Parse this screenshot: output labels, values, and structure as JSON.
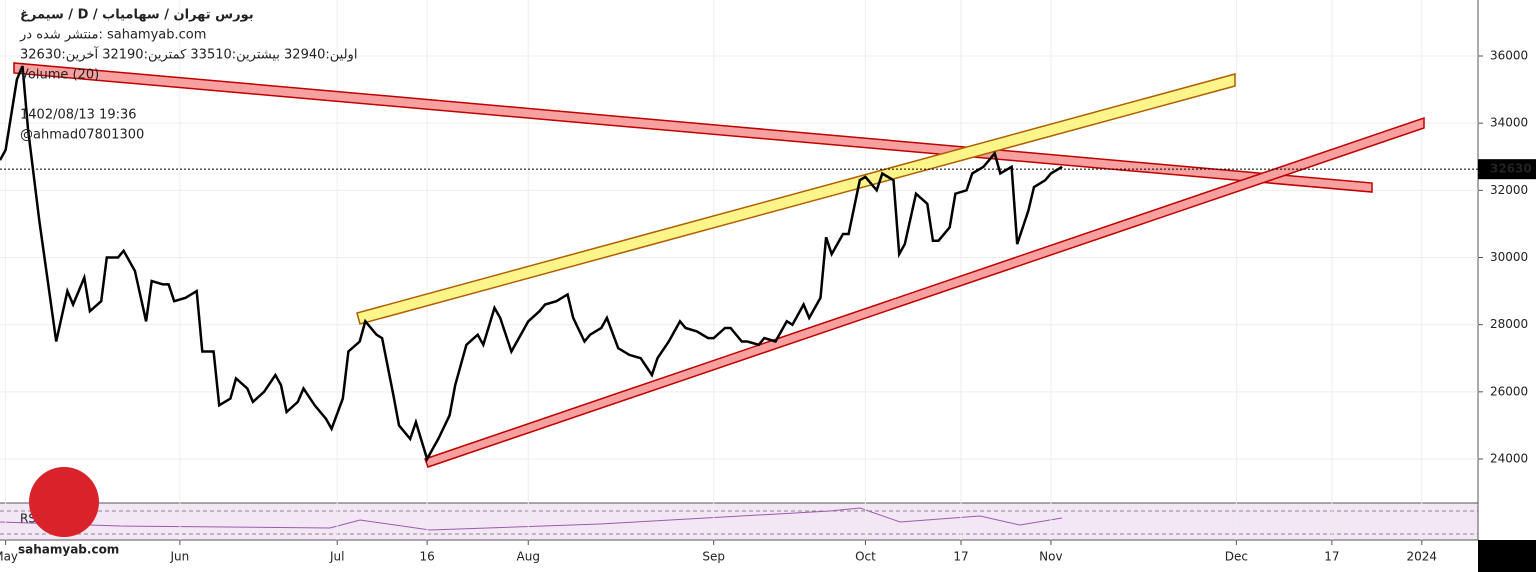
{
  "header": {
    "title": "سیمرغ / D / بورس تهران / سهامیاب",
    "published": "منتشر شده در: sahamyab.com",
    "ohlc": "اولین:32940  بیشترین:33510  کمترین:32190  آخرین:32630",
    "volume_label": "Volume (20)",
    "date": "1402/08/13 19:36",
    "author": "@ahmad07801300",
    "rsi_label": "RSI",
    "watermark": "sahamyab.com"
  },
  "chart_data": {
    "type": "line",
    "color": "#000000",
    "x": [
      -1,
      0,
      2,
      3,
      4,
      6,
      8,
      9,
      11,
      12,
      14,
      15,
      17,
      18,
      20,
      21,
      23,
      25,
      26,
      28,
      29,
      30,
      32,
      34,
      35,
      37,
      38,
      40,
      41,
      43,
      44,
      46,
      48,
      49,
      50,
      52,
      53,
      55,
      57,
      58,
      60,
      61,
      63,
      64,
      66,
      67,
      69,
      70,
      72,
      73,
      75,
      76,
      77,
      79,
      80,
      82,
      84,
      85,
      87,
      88,
      90,
      91,
      93,
      95,
      96,
      98,
      100,
      101,
      103,
      104,
      106,
      107,
      109,
      111,
      113,
      115,
      116,
      118,
      120,
      121,
      123,
      125,
      126,
      128,
      129,
      131,
      132,
      134,
      135,
      137,
      139,
      140,
      142,
      143,
      145,
      146,
      147,
      149,
      150,
      152,
      153,
      155,
      156,
      158,
      159,
      160,
      162,
      164,
      165,
      166,
      168,
      169,
      171,
      172,
      174,
      176,
      177,
      179,
      180,
      182,
      183,
      185,
      186,
      188
    ],
    "values": [
      32900,
      33200,
      35300,
      35700,
      33800,
      31100,
      28700,
      27500,
      29000,
      28600,
      29400,
      28400,
      28700,
      30000,
      30000,
      30200,
      29600,
      28100,
      29300,
      29200,
      29200,
      28700,
      28800,
      29000,
      27200,
      27200,
      25600,
      25800,
      26400,
      26100,
      25700,
      26000,
      26500,
      26200,
      25400,
      25700,
      26100,
      25600,
      25200,
      24900,
      25800,
      27200,
      27500,
      28100,
      27700,
      27600,
      25900,
      25000,
      24600,
      25100,
      24000,
      24300,
      24600,
      25300,
      26200,
      27400,
      27700,
      27400,
      28500,
      28200,
      27200,
      27500,
      28100,
      28400,
      28600,
      28700,
      28900,
      28200,
      27500,
      27700,
      27900,
      28200,
      27300,
      27100,
      27000,
      26500,
      27000,
      27500,
      28100,
      27900,
      27800,
      27600,
      27600,
      27900,
      27900,
      27500,
      27500,
      27400,
      27600,
      27500,
      28100,
      28000,
      28600,
      28200,
      28800,
      30600,
      30100,
      30700,
      30700,
      32300,
      32400,
      32000,
      32500,
      32300,
      30100,
      30400,
      31900,
      31600,
      30500,
      30500,
      30900,
      31900,
      32000,
      32500,
      32700,
      33100,
      32500,
      32700,
      30400,
      31400,
      32100,
      32300,
      32500,
      32700
    ],
    "last": 32630,
    "xlim": [
      -1,
      262
    ],
    "ylim": [
      22690,
      37667
    ],
    "yticks": [
      24000,
      26000,
      28000,
      30000,
      32000,
      34000,
      36000
    ],
    "xticks": [
      {
        "value": 0,
        "label": "May"
      },
      {
        "value": 31,
        "label": "Jun"
      },
      {
        "value": 59,
        "label": "Jul"
      },
      {
        "value": 75,
        "label": "16"
      },
      {
        "value": 93,
        "label": "Aug"
      },
      {
        "value": 126,
        "label": "Sep"
      },
      {
        "value": 153,
        "label": "Oct"
      },
      {
        "value": 170,
        "label": "17"
      },
      {
        "value": 186,
        "label": "Nov"
      },
      {
        "value": 219,
        "label": "Dec"
      },
      {
        "value": 236,
        "label": "17"
      },
      {
        "value": 252,
        "label": "2024"
      }
    ],
    "grid": true
  }
}
